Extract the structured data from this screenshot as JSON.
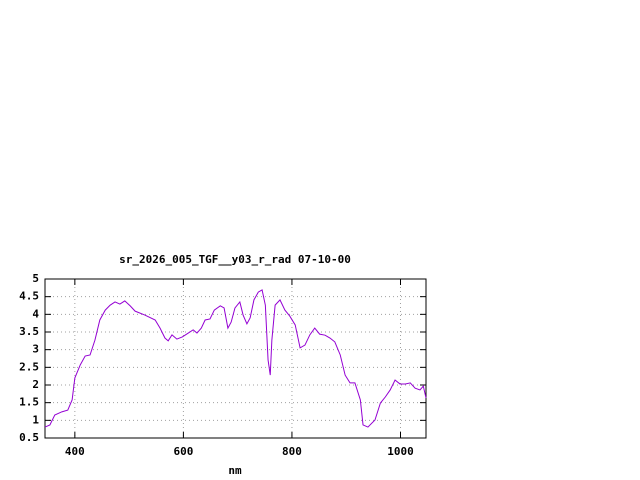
{
  "chart_data": {
    "type": "line",
    "title": "sr_2026_005_TGF__y03_r_rad 07-10-00",
    "x_label": "nm",
    "xlim": [
      345,
      1047
    ],
    "xticks": [
      400,
      600,
      800,
      1000
    ],
    "ylim": [
      0.5,
      5
    ],
    "yticks": [
      0.5,
      1,
      1.5,
      2,
      2.5,
      3,
      3.5,
      4,
      4.5,
      5
    ],
    "grid": true,
    "series": [
      {
        "color": "#9400d3",
        "x": [
          345,
          354,
          363,
          376,
          387,
          395,
          400,
          410,
          419,
          428,
          437,
          446,
          456,
          465,
          474,
          483,
          492,
          502,
          511,
          529,
          548,
          557,
          566,
          572,
          579,
          588,
          598,
          609,
          618,
          625,
          633,
          640,
          649,
          657,
          668,
          675,
          682,
          688,
          695,
          704,
          710,
          717,
          723,
          730,
          738,
          745,
          751,
          756,
          760,
          763,
          769,
          778,
          787,
          796,
          806,
          815,
          824,
          833,
          842,
          851,
          861,
          870,
          879,
          889,
          898,
          907,
          916,
          926,
          931,
          940,
          953,
          963,
          972,
          981,
          990,
          999,
          1009,
          1018,
          1027,
          1036,
          1042,
          1047
        ],
        "values": [
          0.81,
          0.87,
          1.15,
          1.24,
          1.29,
          1.58,
          2.2,
          2.57,
          2.82,
          2.85,
          3.27,
          3.84,
          4.12,
          4.26,
          4.35,
          4.29,
          4.38,
          4.24,
          4.09,
          3.98,
          3.84,
          3.61,
          3.33,
          3.25,
          3.42,
          3.3,
          3.36,
          3.47,
          3.56,
          3.47,
          3.61,
          3.84,
          3.87,
          4.12,
          4.24,
          4.18,
          3.61,
          3.78,
          4.18,
          4.35,
          3.98,
          3.73,
          3.9,
          4.41,
          4.63,
          4.69,
          4.26,
          2.71,
          2.28,
          3.27,
          4.26,
          4.41,
          4.12,
          3.95,
          3.7,
          3.05,
          3.13,
          3.42,
          3.61,
          3.44,
          3.41,
          3.33,
          3.22,
          2.85,
          2.28,
          2.06,
          2.06,
          1.58,
          0.87,
          0.81,
          1.01,
          1.49,
          1.66,
          1.86,
          2.14,
          2.03,
          2.03,
          2.06,
          1.91,
          1.86,
          1.97,
          1.63
        ]
      }
    ]
  }
}
